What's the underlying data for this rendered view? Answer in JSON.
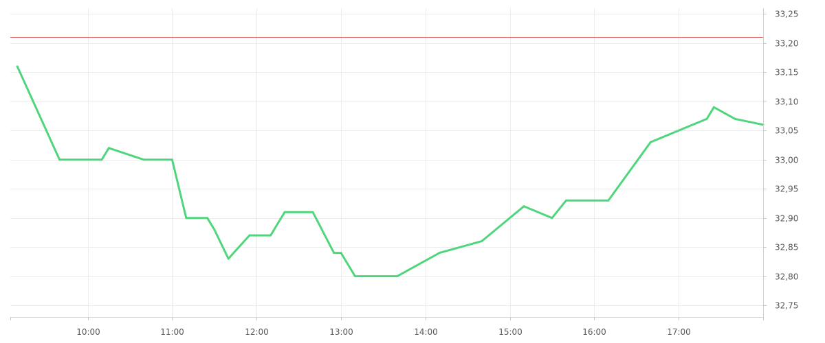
{
  "colors": {
    "line": "#4fd67c",
    "reference": "#e06666",
    "grid": "#ececec",
    "axis": "#d0d0d0",
    "text": "#555555",
    "background": "#ffffff"
  },
  "chart_data": {
    "type": "line",
    "title": "",
    "xlabel": "",
    "ylabel": "",
    "grid": true,
    "legend": "none",
    "y_axis_position": "right",
    "xlim": [
      "09:05",
      "18:00"
    ],
    "ylim": [
      32.73,
      33.26
    ],
    "x_ticks": [
      "10:00",
      "11:00",
      "12:00",
      "13:00",
      "14:00",
      "15:00",
      "16:00",
      "17:00"
    ],
    "y_ticks": [
      "32,75",
      "32,80",
      "32,85",
      "32,90",
      "32,95",
      "33,00",
      "33,05",
      "33,10",
      "33,15",
      "33,20",
      "33,25"
    ],
    "reference_line": {
      "value": 33.21
    },
    "series": [
      {
        "x": [
          "09:10",
          "09:40",
          "10:10",
          "10:15",
          "10:40",
          "11:00",
          "11:10",
          "11:25",
          "11:30",
          "11:40",
          "11:55",
          "12:10",
          "12:20",
          "12:40",
          "12:55",
          "13:00",
          "13:10",
          "13:40",
          "14:10",
          "14:40",
          "15:10",
          "15:30",
          "15:40",
          "16:10",
          "16:40",
          "17:20",
          "17:25",
          "17:40",
          "18:00"
        ],
        "values": [
          33.16,
          33.0,
          33.0,
          33.02,
          33.0,
          33.0,
          32.9,
          32.9,
          32.88,
          32.83,
          32.87,
          32.87,
          32.91,
          32.91,
          32.84,
          32.84,
          32.8,
          32.8,
          32.84,
          32.86,
          32.92,
          32.9,
          32.93,
          32.93,
          33.03,
          33.07,
          33.09,
          33.07,
          33.06
        ]
      }
    ]
  }
}
